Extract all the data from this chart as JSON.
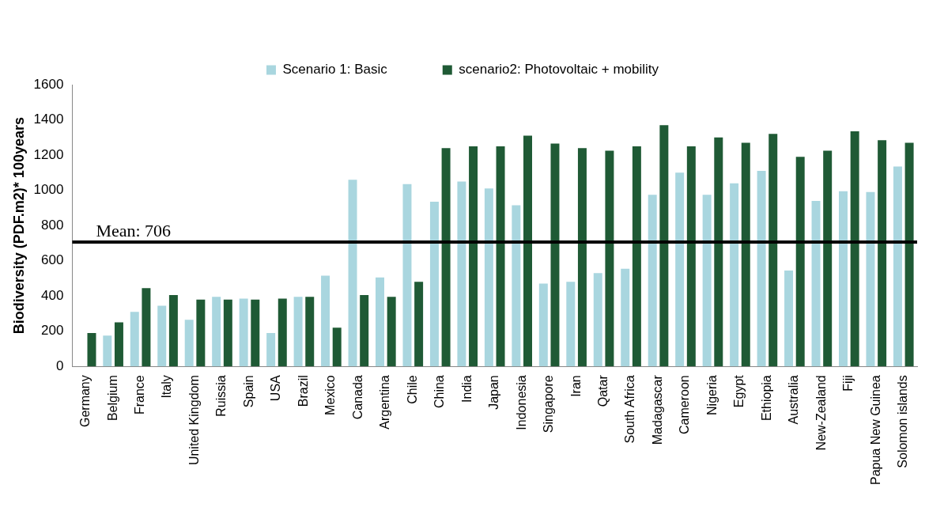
{
  "chart_data": {
    "type": "bar",
    "ylabel": "Biodiversity (PDF.m2)* 100years",
    "categories": [
      "Germany",
      "Belgium",
      "France",
      "Italy",
      "United Kingdom",
      "Ruissia",
      "Spain",
      "USA",
      "Brazil",
      "Mexico",
      "Canada",
      "Argentina",
      "Chile",
      "China",
      "India",
      "Japan",
      "Indonesia",
      "Singapore",
      "Iran",
      "Qatar",
      "South Africa",
      "Madagascar",
      "Cameroon",
      "Nigeria",
      "Egypt",
      "Ethiopia",
      "Australia",
      "New-Zealand",
      "Fiji",
      "Papua New Guinea",
      "Solomon islands"
    ],
    "series": [
      {
        "name": "Scenario 1: Basic",
        "color": "#a9d6df",
        "values": [
          null,
          175,
          310,
          345,
          265,
          395,
          385,
          190,
          395,
          515,
          1060,
          505,
          1035,
          935,
          1050,
          1010,
          915,
          470,
          480,
          530,
          555,
          975,
          1100,
          975,
          1040,
          1110,
          545,
          940,
          995,
          990,
          1135
        ]
      },
      {
        "name": "scenario2: Photovoltaic + mobility",
        "color": "#1f5a35",
        "values": [
          190,
          250,
          445,
          405,
          380,
          380,
          380,
          385,
          395,
          220,
          405,
          395,
          480,
          1240,
          1250,
          1250,
          1310,
          1265,
          1240,
          1225,
          1250,
          1370,
          1250,
          1300,
          1270,
          1320,
          1190,
          1225,
          1335,
          1285,
          1270
        ]
      }
    ],
    "ylim": [
      0,
      1600
    ],
    "yticks": [
      0,
      200,
      400,
      600,
      800,
      1000,
      1200,
      1400,
      1600
    ],
    "grid": false,
    "legend": "top",
    "ref_lines": [
      {
        "axis": "y",
        "value": 706,
        "label": "Mean: 706",
        "color": "#000000"
      }
    ]
  }
}
